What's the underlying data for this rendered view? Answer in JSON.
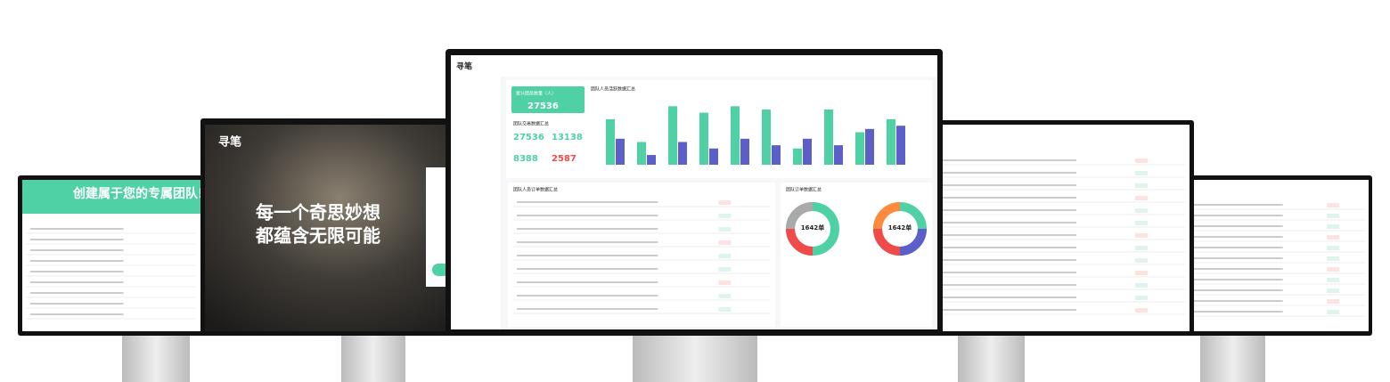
{
  "brand": "寻笔",
  "team_screen": {
    "title": "创建属于您的专属团队!"
  },
  "login_screen": {
    "headline": [
      "每一个奇思妙想",
      "都蕴含无限可能"
    ]
  },
  "dashboard": {
    "stat_card": {
      "title": "累计团员数量（人）",
      "value": "27536"
    },
    "activity_title": "团队人员活跃数据汇总",
    "overview_title": "团队交易数据汇总",
    "stats": [
      "27536",
      "13138",
      "8388",
      "2587"
    ],
    "orders_title": "团队人员订单数据汇总",
    "order_summary_title": "团队订单数据汇总",
    "donuts": [
      "1642单",
      "1642单"
    ],
    "activity": {
      "ylim": [
        0,
        1000
      ],
      "series": [
        {
          "color": "#4fd1a5",
          "values": [
            700,
            350,
            900,
            800,
            900,
            850,
            250,
            850,
            500,
            700
          ]
        },
        {
          "color": "#5b5fc7",
          "values": [
            400,
            150,
            350,
            250,
            400,
            300,
            400,
            300,
            550,
            600
          ]
        }
      ]
    }
  }
}
